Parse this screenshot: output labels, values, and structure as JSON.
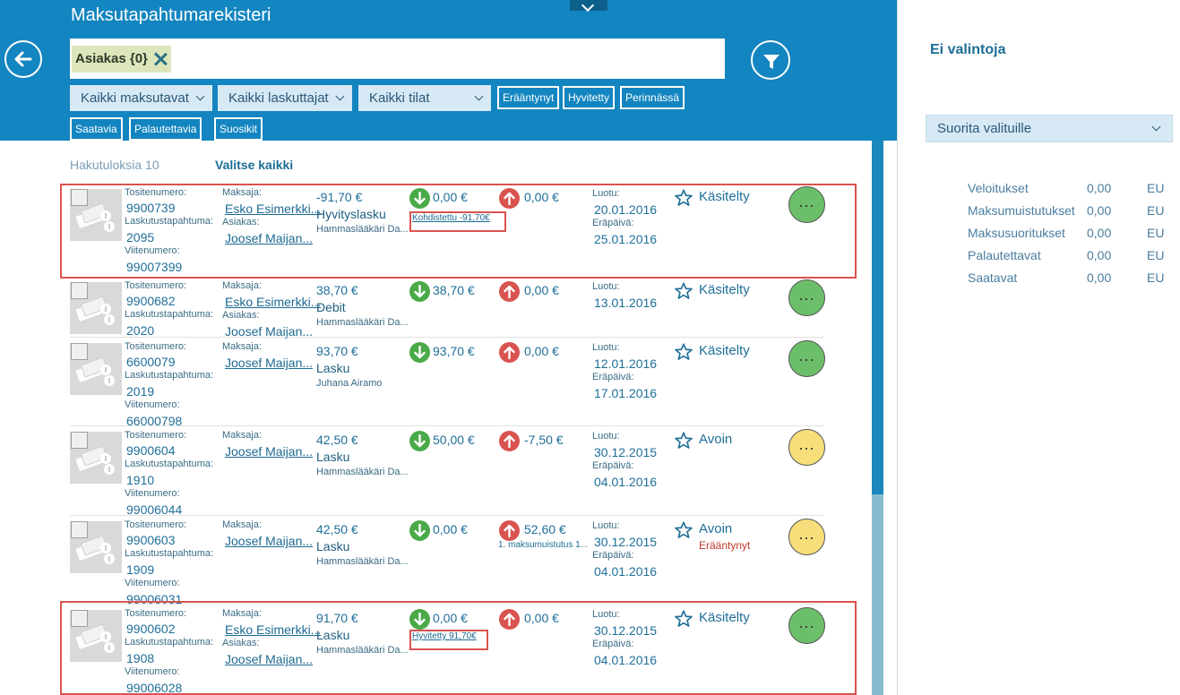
{
  "header": {
    "title": "Maksutapahtumarekisteri",
    "filter_chip": "Asiakas {0}"
  },
  "dropdowns": [
    "Kaikki maksutavat",
    "Kaikki laskuttajat",
    "Kaikki tilat"
  ],
  "tags": [
    "Erääntynyt",
    "Hyvitetty",
    "Perinnässä",
    "Saatavia",
    "Palautettavia",
    "Suosikit"
  ],
  "results": {
    "count_label": "Hakutuloksia 10",
    "select_all": "Valitse kaikki"
  },
  "labels": {
    "voucher": "Tositenumero:",
    "billing_event": "Laskutustapahtuma:",
    "reference": "Viitenumero:",
    "payer": "Maksaja:",
    "customer": "Asiakas:",
    "created": "Luotu:",
    "due": "Eräpäivä:"
  },
  "rows": [
    {
      "voucher": "9900739",
      "billing_event": "2095",
      "reference": "99007399",
      "payer": "Esko Esimerkki...",
      "customer": "Joosef Maijan...",
      "amount": "-91,70 €",
      "type": "Hyvityslasku",
      "biller": "Hammaslääkäri Da...",
      "incoming": "0,00 €",
      "outgoing": "0,00 €",
      "incoming_note": "Kohdistettu -91,70€",
      "outgoing_note": "",
      "created": "20.01.2016",
      "due": "25.01.2016",
      "status": "Käsitelty",
      "status_sub": "",
      "more": "...",
      "color": "#6cbf6a"
    },
    {
      "voucher": "9900682",
      "billing_event": "2020",
      "reference": "",
      "payer": "Esko Esimerkki...",
      "customer": "Joosef Maijan...",
      "amount": "38,70 €",
      "type": "Debit",
      "biller": "Hammaslääkäri Da...",
      "incoming": "38,70 €",
      "outgoing": "0,00 €",
      "incoming_note": "",
      "outgoing_note": "",
      "created": "13.01.2016",
      "due": "",
      "status": "Käsitelty",
      "status_sub": "",
      "more": "...",
      "color": "#6cbf6a"
    },
    {
      "voucher": "6600079",
      "billing_event": "2019",
      "reference": "66000798",
      "payer": "Joosef Maijan...",
      "customer": "",
      "amount": "93,70 €",
      "type": "Lasku",
      "biller": "Juhana Airamo",
      "incoming": "93,70 €",
      "outgoing": "0,00 €",
      "incoming_note": "",
      "outgoing_note": "",
      "created": "12.01.2016",
      "due": "17.01.2016",
      "status": "Käsitelty",
      "status_sub": "",
      "more": "...",
      "color": "#6cbf6a"
    },
    {
      "voucher": "9900604",
      "billing_event": "1910",
      "reference": "99006044",
      "payer": "Joosef Maijan...",
      "customer": "",
      "amount": "42,50 €",
      "type": "Lasku",
      "biller": "Hammaslääkäri Da...",
      "incoming": "50,00 €",
      "outgoing": "-7,50 €",
      "incoming_note": "",
      "outgoing_note": "",
      "created": "30.12.2015",
      "due": "04.01.2016",
      "status": "Avoin",
      "status_sub": "",
      "more": "...",
      "color": "#f7de7b"
    },
    {
      "voucher": "9900603",
      "billing_event": "1909",
      "reference": "99006031",
      "payer": "Joosef Maijan...",
      "customer": "",
      "amount": "42,50 €",
      "type": "Lasku",
      "biller": "Hammaslääkäri Da...",
      "incoming": "0,00 €",
      "outgoing": "52,60 €",
      "incoming_note": "",
      "outgoing_note": "1. maksumuistutus 1...",
      "created": "30.12.2015",
      "due": "04.01.2016",
      "status": "Avoin",
      "status_sub": "Erääntynyt",
      "more": "...",
      "color": "#f7de7b"
    },
    {
      "voucher": "9900602",
      "billing_event": "1908",
      "reference": "99006028",
      "payer": "Esko Esimerkki...",
      "customer": "Joosef Maijan...",
      "amount": "91,70 €",
      "type": "Lasku",
      "biller": "Hammaslääkäri Da...",
      "incoming": "0,00 €",
      "outgoing": "0,00 €",
      "incoming_note": "Hyvitetty 91,70€",
      "outgoing_note": "",
      "created": "30.12.2015",
      "due": "04.01.2016",
      "status": "Käsitelty",
      "status_sub": "",
      "more": "...",
      "color": "#6cbf6a"
    }
  ],
  "right_panel": {
    "no_selection": "Ei valintoja",
    "action_dropdown": "Suorita valituille",
    "summary": [
      {
        "label": "Veloitukset",
        "value": "0,00",
        "currency": "EU"
      },
      {
        "label": "Maksumuistutukset",
        "value": "0,00",
        "currency": "EU"
      },
      {
        "label": "Maksusuoritukset",
        "value": "0,00",
        "currency": "EU"
      },
      {
        "label": "Palautettavat",
        "value": "0,00",
        "currency": "EU"
      },
      {
        "label": "Saatavat",
        "value": "0,00",
        "currency": "EU"
      }
    ]
  },
  "icons": {
    "back": "arrow-left-icon",
    "filter": "funnel-icon",
    "incoming": "arrow-down-icon",
    "outgoing": "arrow-up-icon",
    "favorite": "star-outline-icon",
    "thumbnail": "money-icon"
  },
  "colors": {
    "header_bg": "#1385c0",
    "dropdown_bg": "#d6e9f5",
    "incoming_green": "#4aaa48",
    "outgoing_red": "#d9534f",
    "status_handled": "#6cbf6a",
    "status_open": "#f7de7b",
    "overdue_text": "#c0392b"
  }
}
